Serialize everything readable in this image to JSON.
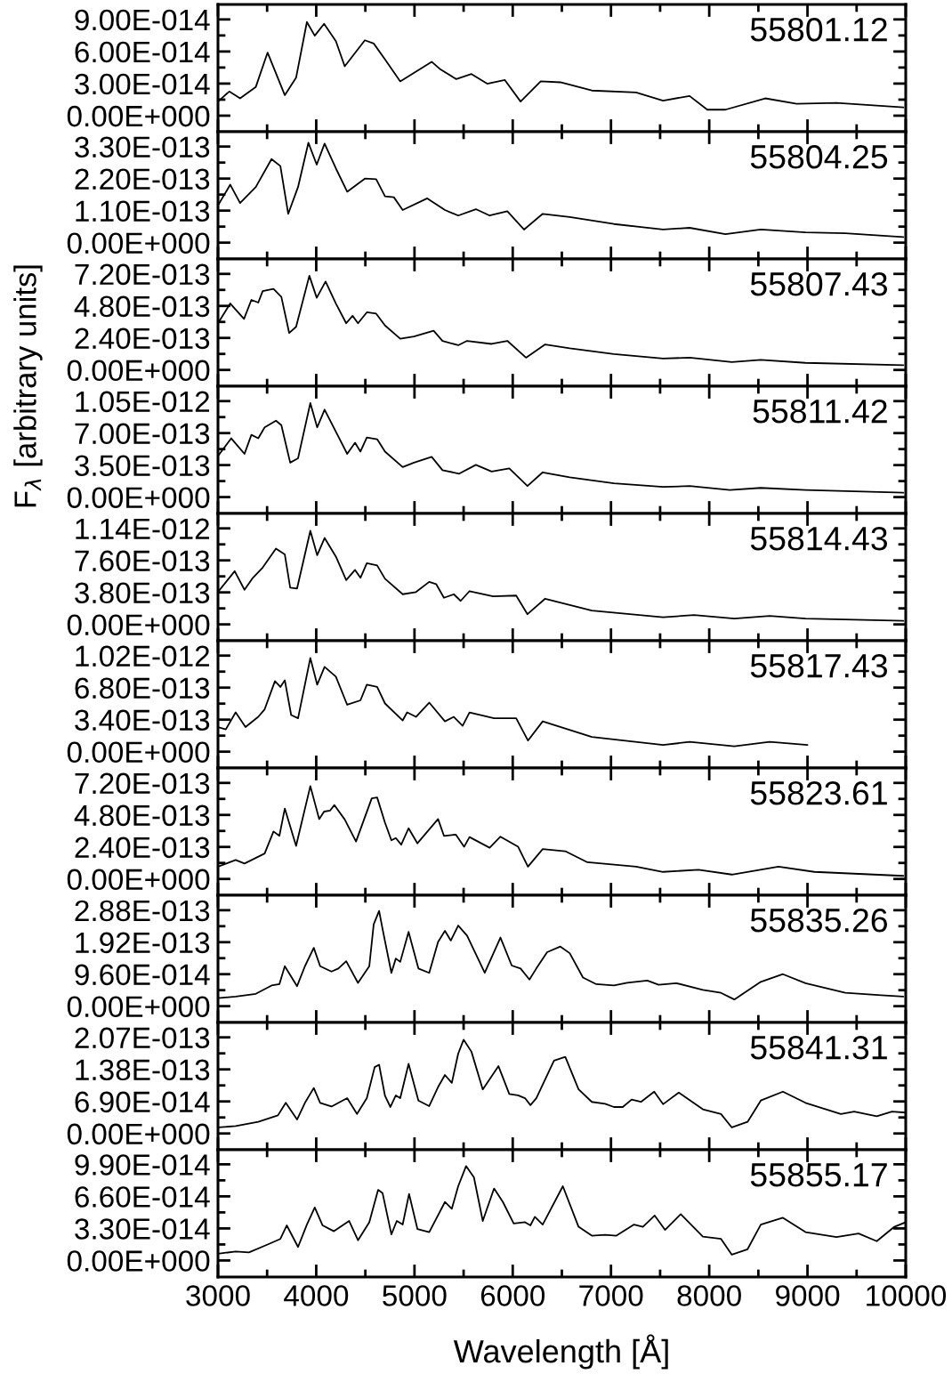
{
  "chart_data": [
    {
      "type": "line",
      "xlim": [
        3000,
        10000
      ],
      "ylim": [
        -1.5e-14,
        1.04e-13
      ],
      "tick_labels": "y",
      "xticks": [
        3000,
        {
          "value": 3500,
          "label": null
        },
        4000,
        {
          "value": 4500,
          "label": null
        },
        5000,
        {
          "value": 5500,
          "label": null
        },
        6000,
        {
          "value": 6500,
          "label": null
        },
        7000,
        {
          "value": 7500,
          "label": null
        },
        8000,
        {
          "value": 8500,
          "label": null
        },
        9000,
        {
          "value": 9500,
          "label": null
        },
        10000
      ],
      "yticks": [
        {
          "value": 0,
          "label": "0.00E+000"
        },
        {
          "value": 1.5e-14,
          "label": null
        },
        {
          "value": 3e-14,
          "label": "3.00E-014"
        },
        {
          "value": 4.5e-14,
          "label": null
        },
        {
          "value": 6e-14,
          "label": "6.00E-014"
        },
        {
          "value": 7.5e-14,
          "label": null
        },
        {
          "value": 9e-14,
          "label": "9.00E-014"
        }
      ],
      "annotations": [
        "55801.12"
      ],
      "series": [
        {
          "color": "#000000",
          "x": [
            3000,
            3115,
            3225,
            3385,
            3505,
            3680,
            3795,
            3905,
            3985,
            4080,
            4200,
            4290,
            4495,
            4585,
            4700,
            4855,
            5175,
            5265,
            5425,
            5580,
            5740,
            5920,
            6080,
            6285,
            6485,
            6805,
            7255,
            7530,
            7800,
            7980,
            8165,
            8570,
            8890,
            9295,
            9975
          ],
          "values": [
            1.32e-14,
            2.26e-14,
            1.62e-14,
            2.69e-14,
            5.9e-14,
            1.92e-14,
            3.55e-14,
            8.76e-14,
            7.48e-14,
            8.59e-14,
            6.97e-14,
            4.62e-14,
            7.05e-14,
            6.75e-14,
            5.26e-14,
            3.21e-14,
            5.04e-14,
            4.32e-14,
            3.42e-14,
            3.89e-14,
            2.99e-14,
            3.33e-14,
            1.32e-14,
            3.21e-14,
            3.12e-14,
            2.35e-14,
            2.18e-14,
            1.41e-14,
            1.84e-14,
            5.6e-15,
            5.6e-15,
            1.62e-14,
            1.11e-14,
            1.2e-14,
            7.7e-15
          ]
        }
      ]
    },
    {
      "type": "line",
      "xlim": [
        3000,
        10000
      ],
      "ylim": [
        -5.6e-14,
        3.81e-13
      ],
      "tick_labels": "y",
      "xticks": [
        3000,
        {
          "value": 3500,
          "label": null
        },
        4000,
        {
          "value": 4500,
          "label": null
        },
        5000,
        {
          "value": 5500,
          "label": null
        },
        6000,
        {
          "value": 6500,
          "label": null
        },
        7000,
        {
          "value": 7500,
          "label": null
        },
        8000,
        {
          "value": 8500,
          "label": null
        },
        9000,
        {
          "value": 9500,
          "label": null
        },
        10000
      ],
      "yticks": [
        {
          "value": 0,
          "label": "0.00E+000"
        },
        {
          "value": 5.5e-14,
          "label": null
        },
        {
          "value": 1.1e-13,
          "label": "1.10E-013"
        },
        {
          "value": 1.65e-13,
          "label": null
        },
        {
          "value": 2.2e-13,
          "label": "2.20E-013"
        },
        {
          "value": 2.75e-13,
          "label": null
        },
        {
          "value": 3.3e-13,
          "label": "3.30E-013"
        }
      ],
      "annotations": [
        "55804.25"
      ],
      "series": [
        {
          "color": "#000000",
          "x": [
            3000,
            3125,
            3225,
            3385,
            3545,
            3635,
            3715,
            3815,
            3920,
            4005,
            4085,
            4200,
            4315,
            4495,
            4610,
            4700,
            4790,
            4880,
            5130,
            5310,
            5445,
            5625,
            5765,
            5945,
            6115,
            6305,
            6580,
            7030,
            7530,
            7800,
            8165,
            8525,
            8980,
            9385,
            9975
          ],
          "values": [
            1.28e-13,
            1.99e-13,
            1.36e-13,
            1.91e-13,
            2.87e-13,
            2.63e-13,
            9.9e-14,
            1.91e-13,
            3.43e-13,
            2.68e-13,
            3.4e-13,
            2.55e-13,
            1.75e-13,
            2.2e-13,
            2.18e-13,
            1.59e-13,
            1.56e-13,
            1.12e-13,
            1.52e-13,
            1.12e-13,
            9.3e-14,
            1.15e-13,
            9.3e-14,
            1.08e-13,
            4.5e-14,
            9.9e-14,
            8.8e-14,
            6.4e-14,
            4.5e-14,
            5.1e-14,
            2.9e-14,
            4.5e-14,
            3.5e-14,
            3.2e-14,
            1.9e-14
          ]
        }
      ]
    },
    {
      "type": "line",
      "xlim": [
        3000,
        10000
      ],
      "ylim": [
        -1.22e-13,
        8.32e-13
      ],
      "tick_labels": "y",
      "xticks": [
        3000,
        {
          "value": 3500,
          "label": null
        },
        4000,
        {
          "value": 4500,
          "label": null
        },
        5000,
        {
          "value": 5500,
          "label": null
        },
        6000,
        {
          "value": 6500,
          "label": null
        },
        7000,
        {
          "value": 7500,
          "label": null
        },
        8000,
        {
          "value": 8500,
          "label": null
        },
        9000,
        {
          "value": 9500,
          "label": null
        },
        10000
      ],
      "yticks": [
        {
          "value": 0,
          "label": "0.00E+000"
        },
        {
          "value": 1.2e-13,
          "label": null
        },
        {
          "value": 2.4e-13,
          "label": "2.40E-013"
        },
        {
          "value": 3.6e-13,
          "label": null
        },
        {
          "value": 4.8e-13,
          "label": "4.80E-013"
        },
        {
          "value": 6e-13,
          "label": null
        },
        {
          "value": 7.2e-13,
          "label": "7.20E-013"
        }
      ],
      "annotations": [
        "55807.43"
      ],
      "series": [
        {
          "color": "#000000",
          "x": [
            3000,
            3125,
            3265,
            3340,
            3410,
            3455,
            3565,
            3645,
            3725,
            3795,
            3930,
            4005,
            4095,
            4200,
            4305,
            4370,
            4425,
            4515,
            4610,
            4700,
            4855,
            4995,
            5195,
            5285,
            5445,
            5535,
            5785,
            5945,
            6135,
            6330,
            6580,
            7030,
            7530,
            7800,
            8230,
            8525,
            8980,
            9975
          ],
          "values": [
            3.5e-13,
            4.98e-13,
            3.83e-13,
            5.25e-13,
            5.05e-13,
            5.91e-13,
            6.07e-13,
            5.48e-13,
            2.77e-13,
            3.23e-13,
            7.06e-13,
            5.41e-13,
            6.63e-13,
            4.98e-13,
            3.5e-13,
            4.06e-13,
            3.5e-13,
            4.32e-13,
            4.22e-13,
            3.33e-13,
            2.34e-13,
            2.51e-13,
            2.94e-13,
            2.18e-13,
            1.85e-13,
            2.18e-13,
            1.95e-13,
            2.18e-13,
            9.2e-14,
            1.91e-13,
            1.62e-13,
            1.19e-13,
            8.6e-14,
            9.2e-14,
            5.9e-14,
            7.6e-14,
            5.3e-14,
            3.6e-14
          ]
        }
      ]
    },
    {
      "type": "line",
      "xlim": [
        3000,
        10000
      ],
      "ylim": [
        -1.79e-13,
        1.213e-12
      ],
      "tick_labels": "y",
      "ylabel": "F$_{λ}$ [arbitrary units]",
      "xticks": [
        3000,
        {
          "value": 3500,
          "label": null
        },
        4000,
        {
          "value": 4500,
          "label": null
        },
        5000,
        {
          "value": 5500,
          "label": null
        },
        6000,
        {
          "value": 6500,
          "label": null
        },
        7000,
        {
          "value": 7500,
          "label": null
        },
        8000,
        {
          "value": 8500,
          "label": null
        },
        9000,
        {
          "value": 9500,
          "label": null
        },
        10000
      ],
      "yticks": [
        {
          "value": 0,
          "label": "0.00E+000"
        },
        {
          "value": 1.75e-13,
          "label": null
        },
        {
          "value": 3.5e-13,
          "label": "3.50E-013"
        },
        {
          "value": 5.25e-13,
          "label": null
        },
        {
          "value": 7e-13,
          "label": "7.00E-013"
        },
        {
          "value": 8.75e-13,
          "label": null
        },
        {
          "value": 1.05e-12,
          "label": "1.05E-012"
        }
      ],
      "annotations": [
        "55811.42"
      ],
      "series": [
        {
          "color": "#000000",
          "x": [
            3000,
            3135,
            3270,
            3340,
            3410,
            3475,
            3590,
            3645,
            3735,
            3815,
            3940,
            4010,
            4085,
            4200,
            4315,
            4395,
            4450,
            4515,
            4620,
            4700,
            4880,
            4995,
            5175,
            5285,
            5455,
            5625,
            5785,
            5965,
            6150,
            6305,
            6580,
            7030,
            7530,
            7800,
            8210,
            8525,
            8980,
            9975
          ],
          "values": [
            4.49e-13,
            6.43e-13,
            4.73e-13,
            6.81e-13,
            6.43e-13,
            7.63e-13,
            8.36e-13,
            7.87e-13,
            3.77e-13,
            4.25e-13,
            1.029e-12,
            7.63e-13,
            9.57e-13,
            7.15e-13,
            4.73e-13,
            5.94e-13,
            4.98e-13,
            6.52e-13,
            6.33e-13,
            4.98e-13,
            3.29e-13,
            3.77e-13,
            4.4e-13,
            2.95e-13,
            2.56e-13,
            3.53e-13,
            2.8e-13,
            3.14e-13,
            1.21e-13,
            2.71e-13,
            2.17e-13,
            1.5e-13,
            1.11e-13,
            1.21e-13,
            7.7e-14,
            1.01e-13,
            7.7e-14,
            4.8e-14
          ]
        }
      ]
    },
    {
      "type": "line",
      "xlim": [
        3000,
        10000
      ],
      "ylim": [
        -1.94e-13,
        1.317e-12
      ],
      "tick_labels": "y",
      "xticks": [
        3000,
        {
          "value": 3500,
          "label": null
        },
        4000,
        {
          "value": 4500,
          "label": null
        },
        5000,
        {
          "value": 5500,
          "label": null
        },
        6000,
        {
          "value": 6500,
          "label": null
        },
        7000,
        {
          "value": 7500,
          "label": null
        },
        8000,
        {
          "value": 8500,
          "label": null
        },
        9000,
        {
          "value": 9500,
          "label": null
        },
        10000
      ],
      "yticks": [
        {
          "value": 0,
          "label": "0.00E+000"
        },
        {
          "value": 1.9e-13,
          "label": null
        },
        {
          "value": 3.8e-13,
          "label": "3.80E-013"
        },
        {
          "value": 5.7e-13,
          "label": null
        },
        {
          "value": 7.6e-13,
          "label": "7.60E-013"
        },
        {
          "value": 9.5e-13,
          "label": null
        },
        {
          "value": 1.14e-12,
          "label": "1.14E-012"
        }
      ],
      "annotations": [
        "55814.43"
      ],
      "series": [
        {
          "color": "#000000",
          "x": [
            3000,
            3170,
            3270,
            3355,
            3455,
            3590,
            3680,
            3735,
            3805,
            3940,
            4010,
            4085,
            4200,
            4305,
            4395,
            4450,
            4515,
            4620,
            4700,
            4880,
            5015,
            5150,
            5220,
            5300,
            5400,
            5470,
            5560,
            5800,
            6035,
            6150,
            6330,
            6805,
            7530,
            7845,
            8255,
            8615,
            8980,
            9975
          ],
          "values": [
            3.84e-13,
            6.32e-13,
            4.11e-13,
            5.53e-13,
            6.74e-13,
            9e-13,
            8.32e-13,
            4.37e-13,
            4.26e-13,
            1.111e-12,
            8.21e-13,
            1.026e-12,
            8.05e-13,
            5.26e-13,
            6.47e-13,
            5.53e-13,
            7.26e-13,
            7e-13,
            5.42e-13,
            3.58e-13,
            3.84e-13,
            5.05e-13,
            4.79e-13,
            3.16e-13,
            3.58e-13,
            2.79e-13,
            3.95e-13,
            3.32e-13,
            3.42e-13,
            1.21e-13,
            3.05e-13,
            1.63e-13,
            8.4e-14,
            1.11e-13,
            6.8e-14,
            1e-13,
            6.8e-14,
            4.2e-14
          ]
        }
      ]
    },
    {
      "type": "line",
      "xlim": [
        3000,
        10000
      ],
      "ylim": [
        -1.73e-13,
        1.178e-12
      ],
      "tick_labels": "y",
      "xticks": [
        3000,
        {
          "value": 3500,
          "label": null
        },
        4000,
        {
          "value": 4500,
          "label": null
        },
        5000,
        {
          "value": 5500,
          "label": null
        },
        6000,
        {
          "value": 6500,
          "label": null
        },
        7000,
        {
          "value": 7500,
          "label": null
        },
        8000,
        {
          "value": 8500,
          "label": null
        },
        9000,
        {
          "value": 9500,
          "label": null
        },
        10000
      ],
      "yticks": [
        {
          "value": 0,
          "label": "0.00E+000"
        },
        {
          "value": 1.7e-13,
          "label": null
        },
        {
          "value": 3.4e-13,
          "label": "3.40E-013"
        },
        {
          "value": 5.1e-13,
          "label": null
        },
        {
          "value": 6.8e-13,
          "label": "6.80E-013"
        },
        {
          "value": 8.5e-13,
          "label": null
        },
        {
          "value": 1.02e-12,
          "label": "1.02E-012"
        }
      ],
      "annotations": [
        "55817.43"
      ],
      "series": [
        {
          "color": "#000000",
          "x": [
            3000,
            3080,
            3180,
            3280,
            3410,
            3475,
            3580,
            3635,
            3680,
            3745,
            3815,
            3940,
            4010,
            4085,
            4200,
            4315,
            4450,
            4515,
            4620,
            4700,
            4880,
            4925,
            5015,
            5150,
            5310,
            5400,
            5490,
            5560,
            5810,
            6035,
            6155,
            6305,
            6805,
            7530,
            7800,
            8255,
            8615,
            9000
          ],
          "values": [
            2.61e-13,
            2.37e-13,
            4.17e-13,
            2.61e-13,
            3.7e-13,
            4.5e-13,
            7.49e-13,
            6.87e-13,
            7.58e-13,
            3.89e-13,
            3.55e-13,
            9.95e-13,
            7.11e-13,
            9e-13,
            7.96e-13,
            4.98e-13,
            5.45e-13,
            7.11e-13,
            6.87e-13,
            5.12e-13,
            3.32e-13,
            4.17e-13,
            3.7e-13,
            5.21e-13,
            3.22e-13,
            3.7e-13,
            2.75e-13,
            4.17e-13,
            3.55e-13,
            3.55e-13,
            1.18e-13,
            3.22e-13,
            1.56e-13,
            7.1e-14,
            1.04e-13,
            5.7e-14,
            1.04e-13,
            7.1e-14
          ]
        }
      ]
    },
    {
      "type": "line",
      "xlim": [
        3000,
        10000
      ],
      "ylim": [
        -1.22e-13,
        8.32e-13
      ],
      "tick_labels": "y",
      "xticks": [
        3000,
        {
          "value": 3500,
          "label": null
        },
        4000,
        {
          "value": 4500,
          "label": null
        },
        5000,
        {
          "value": 5500,
          "label": null
        },
        6000,
        {
          "value": 6500,
          "label": null
        },
        7000,
        {
          "value": 7500,
          "label": null
        },
        8000,
        {
          "value": 8500,
          "label": null
        },
        9000,
        {
          "value": 9500,
          "label": null
        },
        10000
      ],
      "yticks": [
        {
          "value": 0,
          "label": "0.00E+000"
        },
        {
          "value": 1.2e-13,
          "label": null
        },
        {
          "value": 2.4e-13,
          "label": "2.40E-013"
        },
        {
          "value": 3.6e-13,
          "label": null
        },
        {
          "value": 4.8e-13,
          "label": "4.80E-013"
        },
        {
          "value": 6e-13,
          "label": null
        },
        {
          "value": 7.2e-13,
          "label": "7.20E-013"
        }
      ],
      "annotations": [
        "55823.61"
      ],
      "series": [
        {
          "color": "#000000",
          "x": [
            3000,
            3180,
            3270,
            3475,
            3565,
            3625,
            3680,
            3795,
            3940,
            4030,
            4080,
            4140,
            4185,
            4290,
            4405,
            4565,
            4620,
            4700,
            4765,
            4810,
            4865,
            4940,
            5030,
            5240,
            5300,
            5420,
            5505,
            5560,
            5765,
            5875,
            6055,
            6155,
            6305,
            6535,
            6760,
            7255,
            7530,
            7890,
            8230,
            8705,
            9070,
            9975
          ],
          "values": [
            9.2e-14,
            1.42e-13,
            1.16e-13,
            1.91e-13,
            3.56e-13,
            3.23e-13,
            5.28e-13,
            2.48e-13,
            6.96e-13,
            4.49e-13,
            5.05e-13,
            5.12e-13,
            5.54e-13,
            4.46e-13,
            2.81e-13,
            6.04e-13,
            6.11e-13,
            4.22e-13,
            2.9e-13,
            3.07e-13,
            2.57e-13,
            3.8e-13,
            2.67e-13,
            4.49e-13,
            3.23e-13,
            3.33e-13,
            2.41e-13,
            3.14e-13,
            2.34e-13,
            3.17e-13,
            2.41e-13,
            9.2e-14,
            2.24e-13,
            2.08e-13,
            1.25e-13,
            9.2e-14,
            5.3e-14,
            6.9e-14,
            3.3e-14,
            9.2e-14,
            5.3e-14,
            2.3e-14
          ]
        }
      ]
    },
    {
      "type": "line",
      "xlim": [
        3000,
        10000
      ],
      "ylim": [
        -4.9e-14,
        3.33e-13
      ],
      "tick_labels": "y",
      "xticks": [
        3000,
        {
          "value": 3500,
          "label": null
        },
        4000,
        {
          "value": 4500,
          "label": null
        },
        5000,
        {
          "value": 5500,
          "label": null
        },
        6000,
        {
          "value": 6500,
          "label": null
        },
        7000,
        {
          "value": 7500,
          "label": null
        },
        8000,
        {
          "value": 8500,
          "label": null
        },
        9000,
        {
          "value": 9500,
          "label": null
        },
        10000
      ],
      "yticks": [
        {
          "value": 0,
          "label": "0.00E+000"
        },
        {
          "value": 4.8e-14,
          "label": null
        },
        {
          "value": 9.6e-14,
          "label": "9.60E-014"
        },
        {
          "value": 1.44e-13,
          "label": null
        },
        {
          "value": 1.92e-13,
          "label": "1.92E-013"
        },
        {
          "value": 2.4e-13,
          "label": null
        },
        {
          "value": 2.88e-13,
          "label": "2.88E-013"
        }
      ],
      "annotations": [
        "55835.26"
      ],
      "series": [
        {
          "color": "#000000",
          "x": [
            3000,
            3180,
            3385,
            3545,
            3625,
            3680,
            3805,
            3885,
            3975,
            4040,
            4155,
            4225,
            4305,
            4425,
            4540,
            4585,
            4640,
            4675,
            4765,
            4810,
            4855,
            4940,
            5040,
            5150,
            5240,
            5310,
            5370,
            5445,
            5535,
            5715,
            5875,
            5990,
            6080,
            6170,
            6240,
            6350,
            6485,
            6580,
            6715,
            6850,
            7030,
            7165,
            7370,
            7485,
            7665,
            7935,
            8120,
            8255,
            8525,
            8750,
            8980,
            9385,
            9750,
            9975
          ],
          "values": [
            2.4e-14,
            2.9e-14,
            3.7e-14,
            6.2e-14,
            6.6e-14,
            1.2e-13,
            6e-14,
            1.2e-13,
            1.75e-13,
            1.2e-13,
            1.04e-13,
            1.13e-13,
            1.35e-13,
            7e-14,
            1.2e-13,
            2.46e-13,
            2.86e-13,
            2.32e-13,
            1e-13,
            1.43e-13,
            1.33e-13,
            2.23e-13,
            1.13e-13,
            1e-13,
            1.93e-13,
            2.26e-13,
            1.97e-13,
            2.42e-13,
            2.12e-13,
            1e-13,
            2.06e-13,
            1.22e-13,
            1.13e-13,
            8e-14,
            1.13e-13,
            1.62e-13,
            1.79e-13,
            1.59e-13,
            8.6e-14,
            6.6e-14,
            6.2e-14,
            7e-14,
            7.7e-14,
            6.4e-14,
            6.9e-14,
            4.9e-14,
            4e-14,
            2e-14,
            7.3e-14,
            9.6e-14,
            6.9e-14,
            4e-14,
            3.3e-14,
            2.9e-14
          ]
        }
      ]
    },
    {
      "type": "line",
      "xlim": [
        3000,
        10000
      ],
      "ylim": [
        -3.5e-14,
        2.39e-13
      ],
      "tick_labels": "y",
      "xticks": [
        3000,
        {
          "value": 3500,
          "label": null
        },
        4000,
        {
          "value": 4500,
          "label": null
        },
        5000,
        {
          "value": 5500,
          "label": null
        },
        6000,
        {
          "value": 6500,
          "label": null
        },
        7000,
        {
          "value": 7500,
          "label": null
        },
        8000,
        {
          "value": 8500,
          "label": null
        },
        9000,
        {
          "value": 9500,
          "label": null
        },
        10000
      ],
      "yticks": [
        {
          "value": 0,
          "label": "0.00E+000"
        },
        {
          "value": 3.45e-14,
          "label": null
        },
        {
          "value": 6.9e-14,
          "label": "6.90E-014"
        },
        {
          "value": 1.035e-13,
          "label": null
        },
        {
          "value": 1.38e-13,
          "label": "1.38E-013"
        },
        {
          "value": 1.725e-13,
          "label": null
        },
        {
          "value": 2.07e-13,
          "label": "2.07E-013"
        }
      ],
      "annotations": [
        "55841.31"
      ],
      "series": [
        {
          "color": "#000000",
          "x": [
            3000,
            3180,
            3410,
            3610,
            3690,
            3805,
            3885,
            3975,
            4040,
            4155,
            4315,
            4415,
            4515,
            4595,
            4640,
            4700,
            4755,
            4810,
            4855,
            4940,
            5040,
            5150,
            5240,
            5310,
            5380,
            5445,
            5500,
            5580,
            5695,
            5855,
            5965,
            6055,
            6125,
            6180,
            6240,
            6420,
            6535,
            6670,
            6805,
            6940,
            7030,
            7120,
            7210,
            7305,
            7440,
            7530,
            7690,
            7935,
            8120,
            8230,
            8390,
            8525,
            8750,
            8980,
            9340,
            9475,
            9705,
            9860,
            10000
          ],
          "values": [
            1.3e-14,
            1.6e-14,
            2.5e-14,
            3.9e-14,
            6.6e-14,
            3e-14,
            6.6e-14,
            9.8e-14,
            6.6e-14,
            5.8e-14,
            7.6e-14,
            4.2e-14,
            7.6e-14,
            1.43e-13,
            1.48e-13,
            8.1e-14,
            5.7e-14,
            8.2e-14,
            7.6e-14,
            1.5e-13,
            7.1e-14,
            5.9e-14,
            1e-13,
            1.26e-13,
            1.09e-13,
            1.72e-13,
            2.02e-13,
            1.76e-13,
            9.5e-14,
            1.45e-13,
            8.5e-14,
            8.2e-14,
            7.6e-14,
            6.1e-14,
            7.6e-14,
            1.57e-13,
            1.65e-13,
            9.5e-14,
            6.8e-14,
            6.4e-14,
            5.7e-14,
            5.7e-14,
            7.3e-14,
            6.8e-14,
            9e-14,
            6.3e-14,
            8.8e-14,
            5.2e-14,
            4.2e-14,
            1.3e-14,
            2.5e-14,
            7.1e-14,
            9e-14,
            6.6e-14,
            4.2e-14,
            4.7e-14,
            3.7e-14,
            4.7e-14,
            4.5e-14
          ]
        }
      ]
    },
    {
      "type": "line",
      "xlim": [
        3000,
        10000
      ],
      "ylim": [
        -1.7e-14,
        1.14e-13
      ],
      "xlabel": "Wavelength [Å]",
      "xticks": [
        3000,
        {
          "value": 3500,
          "label": null
        },
        4000,
        {
          "value": 4500,
          "label": null
        },
        5000,
        {
          "value": 5500,
          "label": null
        },
        6000,
        {
          "value": 6500,
          "label": null
        },
        7000,
        {
          "value": 7500,
          "label": null
        },
        8000,
        {
          "value": 8500,
          "label": null
        },
        9000,
        {
          "value": 9500,
          "label": null
        },
        10000
      ],
      "yticks": [
        {
          "value": 0,
          "label": "0.00E+000"
        },
        {
          "value": 1.65e-14,
          "label": null
        },
        {
          "value": 3.3e-14,
          "label": "3.30E-014"
        },
        {
          "value": 4.95e-14,
          "label": null
        },
        {
          "value": 6.6e-14,
          "label": "6.60E-014"
        },
        {
          "value": 8.25e-14,
          "label": null
        },
        {
          "value": 9.9e-14,
          "label": "9.90E-014"
        }
      ],
      "annotations": [
        "55855.17"
      ],
      "series": [
        {
          "color": "#000000",
          "x": [
            3000,
            3180,
            3315,
            3500,
            3635,
            3700,
            3815,
            3905,
            3985,
            4065,
            4180,
            4335,
            4425,
            4540,
            4630,
            4675,
            4765,
            4820,
            4880,
            4945,
            5030,
            5150,
            5310,
            5380,
            5445,
            5525,
            5605,
            5695,
            5810,
            5900,
            6010,
            6125,
            6180,
            6225,
            6305,
            6510,
            6670,
            6805,
            6940,
            7055,
            7235,
            7325,
            7445,
            7550,
            7710,
            7935,
            8120,
            8230,
            8390,
            8525,
            8750,
            8980,
            9295,
            9520,
            9705,
            9885,
            10000
          ],
          "values": [
            6.9e-15,
            9.3e-15,
            8.3e-15,
            1.62e-14,
            2.22e-14,
            3.61e-14,
            1.39e-14,
            3.7e-14,
            5.46e-14,
            3.61e-14,
            3.01e-14,
            4.07e-14,
            2.08e-14,
            3.94e-14,
            7.27e-14,
            6.94e-14,
            2.69e-14,
            4.07e-14,
            3.7e-14,
            6.85e-14,
            3.24e-14,
            2.92e-14,
            6.02e-14,
            5.32e-14,
            7.64e-14,
            9.72e-14,
            8.56e-14,
            4.07e-14,
            7.41e-14,
            6.02e-14,
            3.8e-14,
            3.94e-14,
            3.61e-14,
            4.49e-14,
            3.7e-14,
            7.64e-14,
            3.47e-14,
            2.55e-14,
            2.64e-14,
            2.55e-14,
            3.7e-14,
            3.47e-14,
            4.63e-14,
            3.15e-14,
            4.77e-14,
            2.45e-14,
            2.22e-14,
            6e-15,
            1.16e-14,
            3.7e-14,
            4.4e-14,
            2.92e-14,
            2.41e-14,
            2.78e-14,
            1.99e-14,
            3.47e-14,
            3.94e-14
          ]
        }
      ]
    }
  ]
}
